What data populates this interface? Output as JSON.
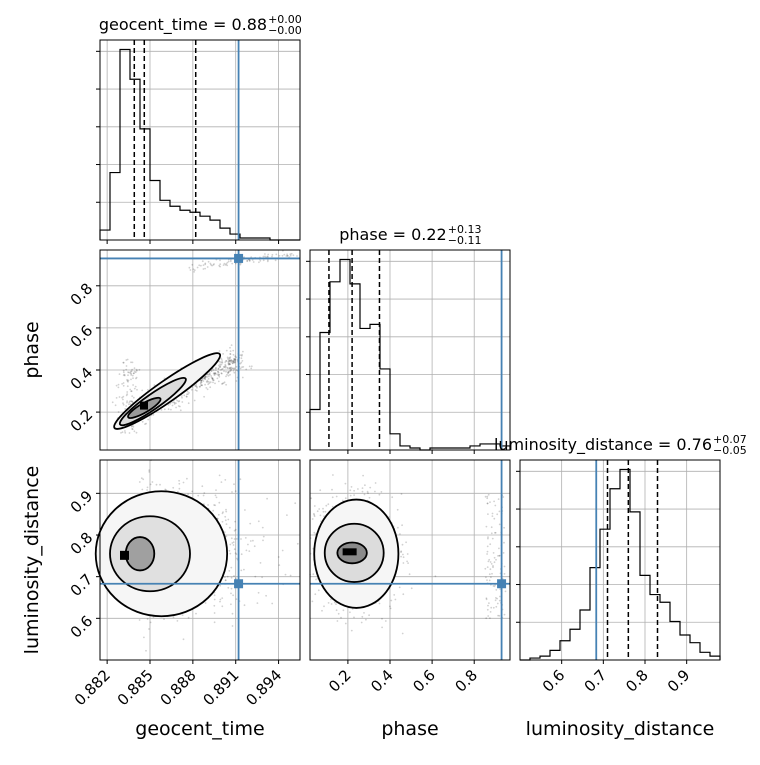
{
  "chart_data": {
    "type": "corner",
    "parameters": [
      "geocent_time",
      "phase",
      "luminosity_distance"
    ],
    "truth": {
      "geocent_time": 0.8912,
      "phase": 0.93,
      "luminosity_distance": 0.683
    },
    "ranges": {
      "geocent_time": [
        0.8815,
        0.8955
      ],
      "phase": [
        0.02,
        0.97
      ],
      "luminosity_distance": [
        0.5,
        0.98
      ]
    },
    "ticks": {
      "geocent_time": [
        "0.882",
        "0.885",
        "0.888",
        "0.891",
        "0.894"
      ],
      "phase": [
        "0.2",
        "0.4",
        "0.6",
        "0.8"
      ],
      "luminosity_distance": [
        "0.6",
        "0.7",
        "0.8",
        "0.9"
      ]
    },
    "titles": [
      {
        "param": "geocent_time",
        "main": "geocent_time = 0.88",
        "plus": "+0.00",
        "minus": "−0.00"
      },
      {
        "param": "phase",
        "main": "phase = 0.22",
        "plus": "+0.13",
        "minus": "−0.11"
      },
      {
        "param": "luminosity_distance",
        "main": "luminosity_distance = 0.76",
        "plus": "+0.07",
        "minus": "−0.05"
      }
    ],
    "histograms": {
      "geocent_time": {
        "edges": [
          0.8815,
          0.8822,
          0.8829,
          0.8836,
          0.8843,
          0.885,
          0.8857,
          0.8864,
          0.8871,
          0.8878,
          0.8885,
          0.8892,
          0.8899,
          0.8906,
          0.8913,
          0.892,
          0.8927,
          0.8934,
          0.8941,
          0.8948,
          0.8955
        ],
        "counts": [
          5,
          34,
          96,
          81,
          56,
          30,
          20,
          17,
          15,
          14,
          12,
          10,
          6,
          3,
          1,
          1,
          1,
          0,
          0,
          0
        ],
        "quantiles": [
          0.8839,
          0.8846,
          0.8882
        ]
      },
      "phase": {
        "edges": [
          0.02,
          0.0675,
          0.115,
          0.1625,
          0.21,
          0.2575,
          0.305,
          0.3525,
          0.4,
          0.4475,
          0.495,
          0.5425,
          0.59,
          0.6375,
          0.685,
          0.7325,
          0.78,
          0.8275,
          0.875,
          0.9225,
          0.97
        ],
        "counts": [
          20,
          58,
          83,
          94,
          82,
          60,
          62,
          40,
          8,
          2,
          1,
          0,
          1,
          1,
          1,
          1,
          2,
          3,
          3,
          2
        ],
        "quantiles": [
          0.11,
          0.22,
          0.35
        ]
      },
      "luminosity_distance": {
        "edges": [
          0.5,
          0.524,
          0.548,
          0.572,
          0.596,
          0.62,
          0.644,
          0.668,
          0.692,
          0.716,
          0.74,
          0.764,
          0.788,
          0.812,
          0.836,
          0.86,
          0.884,
          0.908,
          0.932,
          0.956,
          0.98
        ],
        "counts": [
          0,
          1,
          2,
          5,
          10,
          16,
          26,
          48,
          68,
          89,
          99,
          77,
          44,
          34,
          30,
          20,
          13,
          9,
          4,
          2
        ],
        "quantiles": [
          0.71,
          0.76,
          0.83
        ]
      }
    }
  }
}
